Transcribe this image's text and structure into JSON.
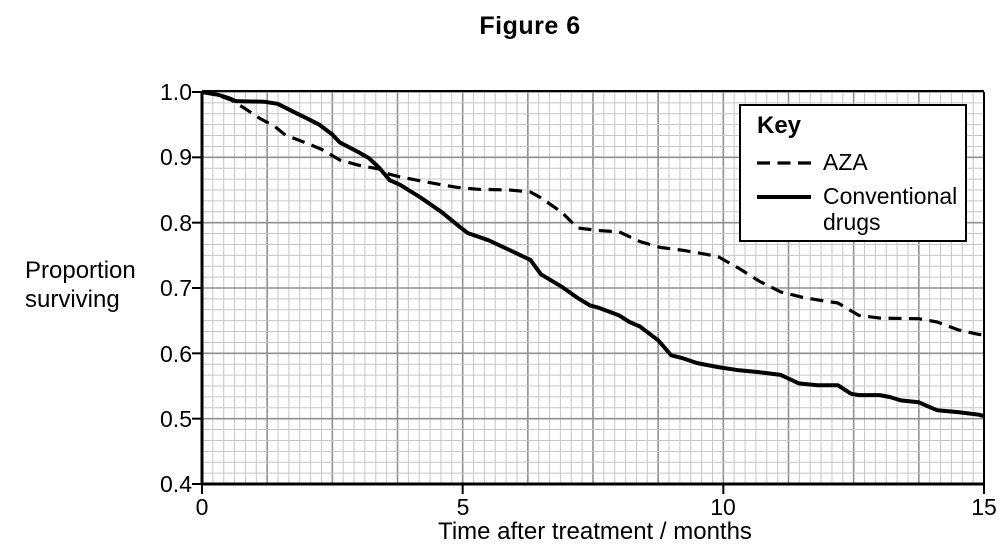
{
  "figure": {
    "title": "Figure 6"
  },
  "chart_data": {
    "type": "line",
    "title": "Figure 6",
    "xlabel": "Time after treatment / months",
    "ylabel": "Proportion surviving",
    "xlim": [
      0,
      15
    ],
    "ylim": [
      0.4,
      1.0
    ],
    "x_tick_labels": [
      "0",
      "5",
      "10",
      "15"
    ],
    "x_tick_values": [
      0,
      5,
      10,
      15
    ],
    "y_tick_labels": [
      "1.0",
      "0.9",
      "0.8",
      "0.7",
      "0.6",
      "0.5",
      "0.4"
    ],
    "y_tick_values": [
      1.0,
      0.9,
      0.8,
      0.7,
      0.6,
      0.5,
      0.4
    ],
    "grid": "fine graph-paper grid, minor + bold major lines",
    "legend": {
      "title": "Key",
      "position": "top-right",
      "entries": [
        {
          "label": "AZA",
          "style": "dashed"
        },
        {
          "label": "Conventional drugs",
          "style": "solid"
        }
      ]
    },
    "series": [
      {
        "name": "AZA",
        "line_style": "dashed",
        "color": "#000000",
        "points": [
          [
            0,
            1.0
          ],
          [
            0.3,
            0.995
          ],
          [
            0.55,
            0.988
          ],
          [
            0.8,
            0.976
          ],
          [
            1.1,
            0.96
          ],
          [
            1.4,
            0.947
          ],
          [
            1.6,
            0.934
          ],
          [
            1.8,
            0.928
          ],
          [
            2.0,
            0.922
          ],
          [
            2.3,
            0.912
          ],
          [
            2.64,
            0.896
          ],
          [
            3.0,
            0.888
          ],
          [
            3.4,
            0.882
          ],
          [
            3.6,
            0.874
          ],
          [
            3.8,
            0.87
          ],
          [
            4.2,
            0.864
          ],
          [
            4.6,
            0.858
          ],
          [
            4.9,
            0.854
          ],
          [
            5.3,
            0.851
          ],
          [
            5.9,
            0.85
          ],
          [
            6.3,
            0.847
          ],
          [
            6.5,
            0.838
          ],
          [
            6.9,
            0.816
          ],
          [
            7.2,
            0.792
          ],
          [
            7.6,
            0.788
          ],
          [
            8.0,
            0.786
          ],
          [
            8.4,
            0.771
          ],
          [
            8.8,
            0.762
          ],
          [
            9.2,
            0.758
          ],
          [
            9.5,
            0.754
          ],
          [
            9.9,
            0.748
          ],
          [
            10.3,
            0.73
          ],
          [
            10.7,
            0.71
          ],
          [
            11.1,
            0.694
          ],
          [
            11.5,
            0.686
          ],
          [
            11.8,
            0.682
          ],
          [
            12.2,
            0.677
          ],
          [
            12.6,
            0.658
          ],
          [
            13.0,
            0.654
          ],
          [
            13.75,
            0.653
          ],
          [
            14.1,
            0.648
          ],
          [
            14.5,
            0.636
          ],
          [
            14.9,
            0.629
          ],
          [
            15,
            0.628
          ]
        ]
      },
      {
        "name": "Conventional drugs",
        "line_style": "solid",
        "color": "#000000",
        "points": [
          [
            0,
            1.0
          ],
          [
            0.3,
            0.996
          ],
          [
            0.5,
            0.991
          ],
          [
            0.65,
            0.986
          ],
          [
            1.2,
            0.985
          ],
          [
            1.45,
            0.982
          ],
          [
            1.6,
            0.976
          ],
          [
            1.8,
            0.968
          ],
          [
            2.0,
            0.96
          ],
          [
            2.25,
            0.95
          ],
          [
            2.5,
            0.935
          ],
          [
            2.64,
            0.923
          ],
          [
            3.0,
            0.908
          ],
          [
            3.2,
            0.899
          ],
          [
            3.4,
            0.884
          ],
          [
            3.6,
            0.865
          ],
          [
            3.8,
            0.858
          ],
          [
            4.2,
            0.838
          ],
          [
            4.6,
            0.816
          ],
          [
            4.95,
            0.793
          ],
          [
            5.1,
            0.784
          ],
          [
            5.5,
            0.773
          ],
          [
            5.9,
            0.758
          ],
          [
            6.3,
            0.743
          ],
          [
            6.5,
            0.721
          ],
          [
            6.9,
            0.702
          ],
          [
            7.2,
            0.685
          ],
          [
            7.45,
            0.673
          ],
          [
            7.6,
            0.67
          ],
          [
            8.0,
            0.658
          ],
          [
            8.2,
            0.648
          ],
          [
            8.4,
            0.641
          ],
          [
            8.75,
            0.62
          ],
          [
            9.0,
            0.597
          ],
          [
            9.2,
            0.593
          ],
          [
            9.5,
            0.585
          ],
          [
            9.9,
            0.579
          ],
          [
            10.3,
            0.574
          ],
          [
            10.7,
            0.571
          ],
          [
            11.1,
            0.567
          ],
          [
            11.45,
            0.554
          ],
          [
            11.8,
            0.551
          ],
          [
            12.2,
            0.551
          ],
          [
            12.45,
            0.538
          ],
          [
            12.6,
            0.536
          ],
          [
            13.0,
            0.536
          ],
          [
            13.2,
            0.533
          ],
          [
            13.4,
            0.528
          ],
          [
            13.75,
            0.525
          ],
          [
            13.95,
            0.518
          ],
          [
            14.1,
            0.513
          ],
          [
            14.5,
            0.51
          ],
          [
            14.9,
            0.506
          ],
          [
            15,
            0.504
          ]
        ]
      }
    ]
  },
  "colors": {
    "line": "#000000",
    "grid_minor": "#c6c6c6",
    "grid_major": "#909090",
    "axis": "#000000",
    "background": "#ffffff"
  }
}
